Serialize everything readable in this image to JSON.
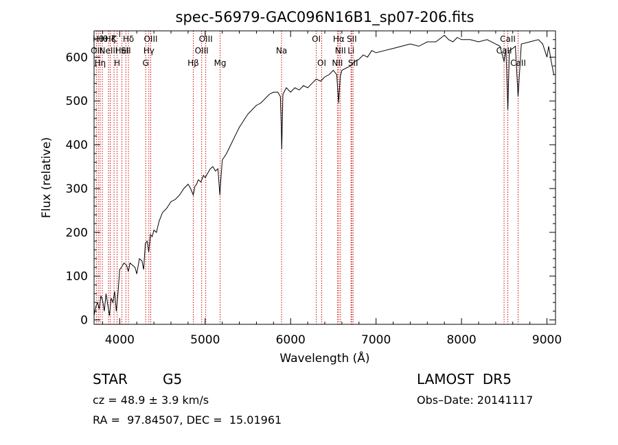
{
  "chart_data": {
    "type": "line",
    "title": "spec-56979-GAC096N16B1_sp07-206.fits",
    "xlabel": "Wavelength (Å)",
    "ylabel": "Flux (relative)",
    "xlim": [
      3700,
      9100
    ],
    "ylim": [
      -10,
      660
    ],
    "xticks": [
      4000,
      5000,
      6000,
      7000,
      8000,
      9000
    ],
    "yticks": [
      0,
      100,
      200,
      300,
      400,
      500,
      600
    ],
    "grid": false,
    "legend": "none",
    "line_color": "#000000",
    "marker_color": "#cc0000",
    "series": [
      {
        "x": [
          3700,
          3720,
          3740,
          3760,
          3780,
          3800,
          3820,
          3840,
          3860,
          3880,
          3900,
          3920,
          3940,
          3960,
          3980,
          4000,
          4020,
          4050,
          4080,
          4101,
          4120,
          4150,
          4180,
          4200,
          4230,
          4260,
          4280,
          4300,
          4320,
          4340,
          4360,
          4380,
          4400,
          4430,
          4460,
          4500,
          4550,
          4600,
          4650,
          4700,
          4750,
          4800,
          4830,
          4861,
          4880,
          4900,
          4920,
          4950,
          4980,
          5000,
          5030,
          5060,
          5090,
          5120,
          5150,
          5172,
          5183,
          5200,
          5250,
          5300,
          5350,
          5400,
          5450,
          5500,
          5550,
          5600,
          5650,
          5700,
          5750,
          5800,
          5850,
          5880,
          5890,
          5896,
          5910,
          5950,
          6000,
          6050,
          6100,
          6150,
          6200,
          6250,
          6300,
          6350,
          6400,
          6450,
          6500,
          6540,
          6562,
          6580,
          6600,
          6650,
          6700,
          6750,
          6800,
          6850,
          6900,
          6950,
          7000,
          7100,
          7200,
          7300,
          7400,
          7500,
          7600,
          7700,
          7800,
          7850,
          7900,
          7950,
          8000,
          8100,
          8200,
          8300,
          8400,
          8450,
          8498,
          8520,
          8542,
          8560,
          8600,
          8630,
          8662,
          8700,
          8800,
          8900,
          8950,
          9000,
          9020,
          9050,
          9080
        ],
        "y": [
          10,
          30,
          40,
          25,
          55,
          45,
          20,
          60,
          35,
          10,
          50,
          40,
          65,
          20,
          60,
          115,
          120,
          130,
          125,
          110,
          130,
          125,
          120,
          105,
          140,
          135,
          115,
          175,
          180,
          155,
          195,
          190,
          205,
          200,
          225,
          245,
          255,
          270,
          275,
          285,
          300,
          310,
          300,
          285,
          305,
          310,
          320,
          315,
          330,
          325,
          335,
          345,
          350,
          340,
          345,
          285,
          320,
          365,
          380,
          400,
          420,
          440,
          455,
          470,
          480,
          490,
          495,
          505,
          515,
          520,
          520,
          510,
          450,
          390,
          515,
          530,
          520,
          530,
          525,
          535,
          530,
          540,
          550,
          545,
          555,
          560,
          570,
          560,
          495,
          555,
          570,
          575,
          580,
          590,
          595,
          605,
          600,
          615,
          610,
          615,
          620,
          625,
          630,
          625,
          635,
          635,
          650,
          640,
          635,
          645,
          640,
          640,
          635,
          640,
          630,
          625,
          590,
          620,
          480,
          615,
          620,
          625,
          510,
          630,
          635,
          640,
          630,
          600,
          625,
          590,
          560
        ]
      }
    ],
    "line_markers": [
      {
        "x": 3727,
        "label": "OII",
        "row": 1
      },
      {
        "x": 3750,
        "label": "Hθ",
        "row": 0
      },
      {
        "x": 3771,
        "label": "Hη",
        "row": 2
      },
      {
        "x": 3797,
        "label": "Hθ",
        "row": 0
      },
      {
        "x": 3869,
        "label": "NeIII",
        "row": 1
      },
      {
        "x": 3889,
        "label": "Hζ",
        "row": 0
      },
      {
        "x": 3934,
        "label": "K",
        "row": 0
      },
      {
        "x": 3969,
        "label": "H",
        "row": 2
      },
      {
        "x": 4026,
        "label": "HeI",
        "row": 1
      },
      {
        "x": 4072,
        "label": "SII",
        "row": 1
      },
      {
        "x": 4102,
        "label": "Hδ",
        "row": 0
      },
      {
        "x": 4304,
        "label": "G",
        "row": 2
      },
      {
        "x": 4341,
        "label": "Hγ",
        "row": 1
      },
      {
        "x": 4363,
        "label": "OIII",
        "row": 0
      },
      {
        "x": 4861,
        "label": "Hβ",
        "row": 2
      },
      {
        "x": 4959,
        "label": "OIII",
        "row": 1
      },
      {
        "x": 5007,
        "label": "OIII",
        "row": 0
      },
      {
        "x": 5175,
        "label": "Mg",
        "row": 2
      },
      {
        "x": 5894,
        "label": "Na",
        "row": 1
      },
      {
        "x": 6300,
        "label": "OI",
        "row": 0
      },
      {
        "x": 6364,
        "label": "OI",
        "row": 2
      },
      {
        "x": 6548,
        "label": "NII",
        "row": 2
      },
      {
        "x": 6563,
        "label": "Hα",
        "row": 0
      },
      {
        "x": 6583,
        "label": "NII",
        "row": 1
      },
      {
        "x": 6707,
        "label": "Li",
        "row": 1
      },
      {
        "x": 6716,
        "label": "SII",
        "row": 0
      },
      {
        "x": 6731,
        "label": "SII",
        "row": 2
      },
      {
        "x": 8498,
        "label": "CaII",
        "row": 1
      },
      {
        "x": 8542,
        "label": "CaII",
        "row": 0
      },
      {
        "x": 8662,
        "label": "CaII",
        "row": 2
      }
    ]
  },
  "info": {
    "class_label": "STAR",
    "subclass": "G5",
    "survey": "LAMOST  DR5",
    "redshift_line": "cz = 48.9 ± 3.9 km/s",
    "obs_date_line": "Obs–Date: 20141117",
    "coord_line": "RA =  97.84507, DEC =  15.01961"
  }
}
